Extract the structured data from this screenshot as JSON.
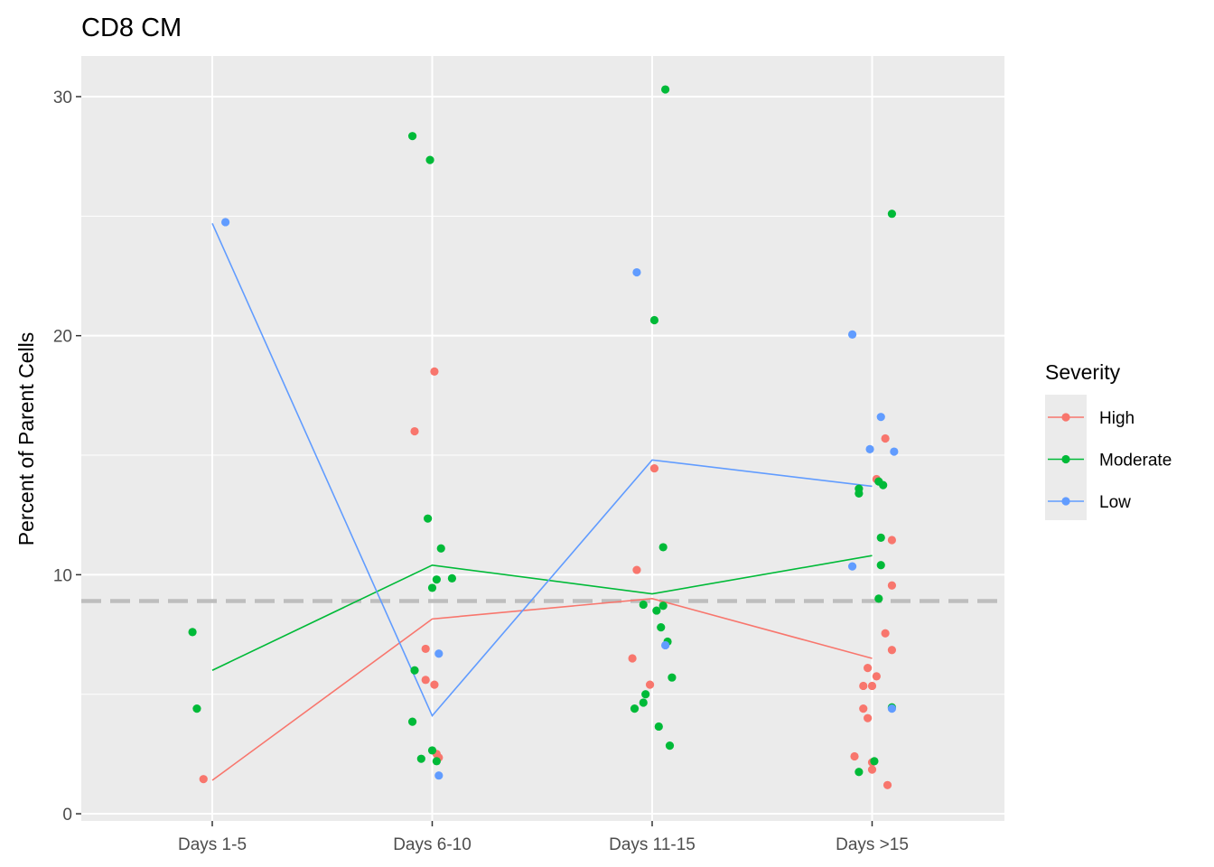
{
  "chart_data": {
    "type": "scatter",
    "title": "CD8 CM",
    "xlabel": "",
    "ylabel": "Percent of Parent Cells",
    "categories": [
      "Days 1-5",
      "Days 6-10",
      "Days 11-15",
      "Days >15"
    ],
    "ylim": [
      -0.3,
      31.7
    ],
    "yticks": [
      0,
      10,
      20,
      30
    ],
    "grid": true,
    "reference_line": {
      "y": 8.9,
      "style": "dashed",
      "color": "#bebebe"
    },
    "legend": {
      "title": "Severity",
      "position": "right"
    },
    "series": [
      {
        "name": "High",
        "color": "#F8766D",
        "mean_line": [
          1.4,
          8.15,
          9.0,
          6.5
        ],
        "points": [
          {
            "c": 0,
            "j": -0.04,
            "y": 1.45
          },
          {
            "c": 1,
            "j": -0.08,
            "y": 16.0
          },
          {
            "c": 1,
            "j": 0.01,
            "y": 18.5
          },
          {
            "c": 1,
            "j": -0.03,
            "y": 6.9
          },
          {
            "c": 1,
            "j": -0.03,
            "y": 5.6
          },
          {
            "c": 1,
            "j": 0.01,
            "y": 5.4
          },
          {
            "c": 1,
            "j": 0.02,
            "y": 2.5
          },
          {
            "c": 1,
            "j": 0.03,
            "y": 2.35
          },
          {
            "c": 2,
            "j": 0.01,
            "y": 14.45
          },
          {
            "c": 2,
            "j": -0.07,
            "y": 10.2
          },
          {
            "c": 2,
            "j": -0.09,
            "y": 6.5
          },
          {
            "c": 2,
            "j": -0.01,
            "y": 5.4
          },
          {
            "c": 3,
            "j": 0.06,
            "y": 15.7
          },
          {
            "c": 3,
            "j": 0.02,
            "y": 14.0
          },
          {
            "c": 3,
            "j": 0.09,
            "y": 11.45
          },
          {
            "c": 3,
            "j": 0.09,
            "y": 9.55
          },
          {
            "c": 3,
            "j": 0.06,
            "y": 7.55
          },
          {
            "c": 3,
            "j": 0.09,
            "y": 6.85
          },
          {
            "c": 3,
            "j": -0.02,
            "y": 6.1
          },
          {
            "c": 3,
            "j": 0.02,
            "y": 5.75
          },
          {
            "c": 3,
            "j": -0.04,
            "y": 5.35
          },
          {
            "c": 3,
            "j": 0.0,
            "y": 5.35
          },
          {
            "c": 3,
            "j": -0.04,
            "y": 4.4
          },
          {
            "c": 3,
            "j": -0.02,
            "y": 4.0
          },
          {
            "c": 3,
            "j": -0.08,
            "y": 2.4
          },
          {
            "c": 3,
            "j": 0.0,
            "y": 2.15
          },
          {
            "c": 3,
            "j": 0.0,
            "y": 1.85
          },
          {
            "c": 3,
            "j": 0.07,
            "y": 1.2
          }
        ]
      },
      {
        "name": "Moderate",
        "color": "#00BA38",
        "mean_line": [
          6.0,
          10.4,
          9.2,
          10.8
        ],
        "points": [
          {
            "c": 0,
            "j": -0.09,
            "y": 7.6
          },
          {
            "c": 0,
            "j": -0.07,
            "y": 4.4
          },
          {
            "c": 1,
            "j": -0.09,
            "y": 28.35
          },
          {
            "c": 1,
            "j": -0.01,
            "y": 27.35
          },
          {
            "c": 1,
            "j": -0.02,
            "y": 12.35
          },
          {
            "c": 1,
            "j": 0.04,
            "y": 11.1
          },
          {
            "c": 1,
            "j": 0.09,
            "y": 9.85
          },
          {
            "c": 1,
            "j": 0.02,
            "y": 9.8
          },
          {
            "c": 1,
            "j": 0.0,
            "y": 9.45
          },
          {
            "c": 1,
            "j": -0.08,
            "y": 6.0
          },
          {
            "c": 1,
            "j": -0.09,
            "y": 3.85
          },
          {
            "c": 1,
            "j": 0.0,
            "y": 2.65
          },
          {
            "c": 1,
            "j": -0.05,
            "y": 2.3
          },
          {
            "c": 1,
            "j": 0.02,
            "y": 2.2
          },
          {
            "c": 2,
            "j": 0.06,
            "y": 30.3
          },
          {
            "c": 2,
            "j": 0.01,
            "y": 20.65
          },
          {
            "c": 2,
            "j": 0.05,
            "y": 11.15
          },
          {
            "c": 2,
            "j": -0.04,
            "y": 8.75
          },
          {
            "c": 2,
            "j": 0.05,
            "y": 8.7
          },
          {
            "c": 2,
            "j": 0.02,
            "y": 8.5
          },
          {
            "c": 2,
            "j": 0.04,
            "y": 7.8
          },
          {
            "c": 2,
            "j": 0.07,
            "y": 7.2
          },
          {
            "c": 2,
            "j": 0.09,
            "y": 5.7
          },
          {
            "c": 2,
            "j": -0.03,
            "y": 5.0
          },
          {
            "c": 2,
            "j": -0.04,
            "y": 4.65
          },
          {
            "c": 2,
            "j": -0.08,
            "y": 4.4
          },
          {
            "c": 2,
            "j": 0.03,
            "y": 3.65
          },
          {
            "c": 2,
            "j": 0.08,
            "y": 2.85
          },
          {
            "c": 3,
            "j": 0.09,
            "y": 25.1
          },
          {
            "c": 3,
            "j": 0.03,
            "y": 13.9
          },
          {
            "c": 3,
            "j": 0.05,
            "y": 13.75
          },
          {
            "c": 3,
            "j": -0.06,
            "y": 13.6
          },
          {
            "c": 3,
            "j": -0.06,
            "y": 13.4
          },
          {
            "c": 3,
            "j": 0.04,
            "y": 11.55
          },
          {
            "c": 3,
            "j": 0.04,
            "y": 10.4
          },
          {
            "c": 3,
            "j": 0.03,
            "y": 9.0
          },
          {
            "c": 3,
            "j": 0.09,
            "y": 4.45
          },
          {
            "c": 3,
            "j": 0.01,
            "y": 2.2
          },
          {
            "c": 3,
            "j": -0.06,
            "y": 1.75
          }
        ]
      },
      {
        "name": "Low",
        "color": "#619CFF",
        "mean_line": [
          24.7,
          4.1,
          14.8,
          13.7
        ],
        "points": [
          {
            "c": 0,
            "j": 0.06,
            "y": 24.75
          },
          {
            "c": 1,
            "j": 0.03,
            "y": 6.7
          },
          {
            "c": 1,
            "j": 0.03,
            "y": 1.6
          },
          {
            "c": 2,
            "j": -0.07,
            "y": 22.65
          },
          {
            "c": 2,
            "j": 0.06,
            "y": 7.05
          },
          {
            "c": 3,
            "j": -0.09,
            "y": 20.05
          },
          {
            "c": 3,
            "j": 0.04,
            "y": 16.6
          },
          {
            "c": 3,
            "j": -0.01,
            "y": 15.25
          },
          {
            "c": 3,
            "j": 0.1,
            "y": 15.15
          },
          {
            "c": 3,
            "j": -0.09,
            "y": 10.35
          },
          {
            "c": 3,
            "j": 0.09,
            "y": 4.4
          }
        ]
      }
    ]
  }
}
